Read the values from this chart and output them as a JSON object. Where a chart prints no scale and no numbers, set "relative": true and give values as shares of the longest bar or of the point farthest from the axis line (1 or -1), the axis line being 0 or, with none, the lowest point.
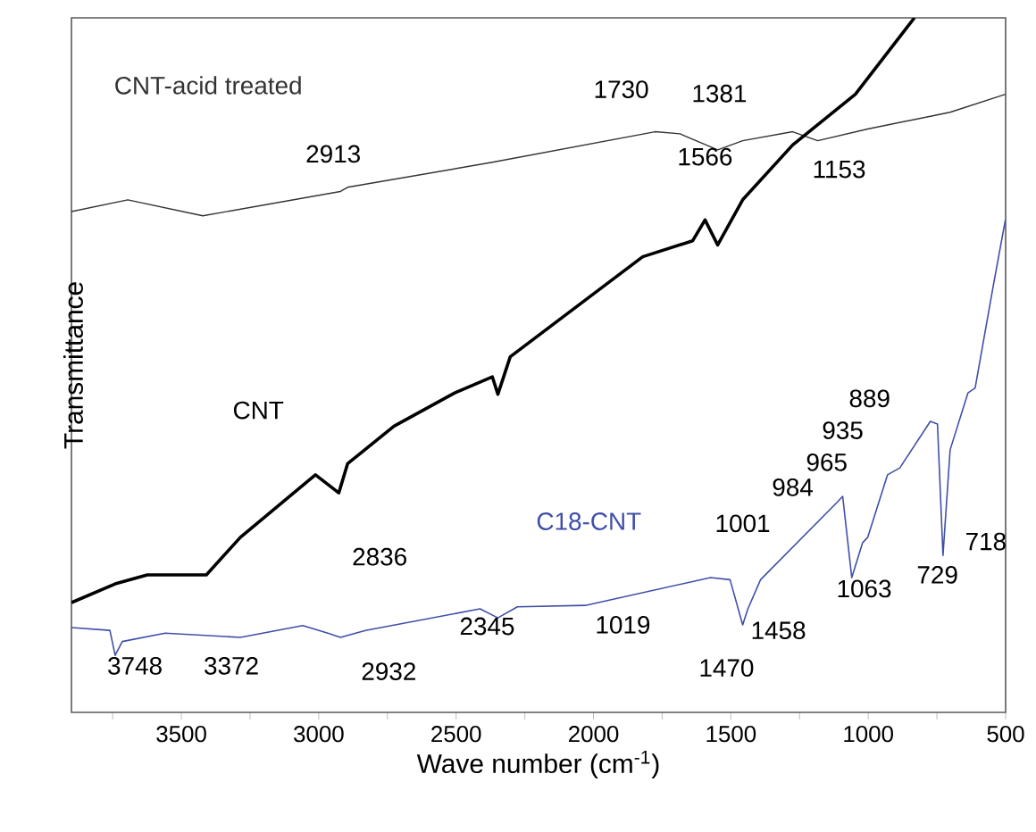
{
  "chart_data": {
    "type": "line",
    "relative": true,
    "xlabel": "Wave number (cm$^{-1}$)",
    "ylabel": "Transmittance",
    "xlim": [
      3900,
      500
    ],
    "xticks": [
      {
        "value": 3750,
        "label": null
      },
      3500,
      {
        "value": 3250,
        "label": null
      },
      3000,
      {
        "value": 2750,
        "label": null
      },
      2500,
      {
        "value": 2250,
        "label": null
      },
      2000,
      {
        "value": 1750,
        "label": null
      },
      1500,
      {
        "value": 1250,
        "label": null
      },
      1000,
      {
        "value": 750,
        "label": null
      },
      500
    ],
    "tick_labels": "x",
    "marker": "none",
    "line_style": "solid",
    "series": [
      {
        "name": "CNT-acid treated",
        "color": "#333333",
        "x": [
          3900,
          3695,
          3422,
          2921,
          2895,
          2368,
          1776,
          1685,
          1548,
          1457,
          1275,
          1184,
          1002,
          702,
          501
        ],
        "values": [
          0.721,
          0.738,
          0.715,
          0.75,
          0.756,
          0.792,
          0.836,
          0.833,
          0.81,
          0.823,
          0.836,
          0.823,
          0.84,
          0.864,
          0.89
        ]
      },
      {
        "name": "CNT",
        "color": "#000000",
        "x": [
          3900,
          3741,
          3624,
          3409,
          3285,
          3012,
          2927,
          2895,
          2726,
          2505,
          2368,
          2348,
          2303,
          1821,
          1639,
          1594,
          1548,
          1457,
          1275,
          1047,
          832
        ],
        "values": [
          0.158,
          0.185,
          0.198,
          0.198,
          0.252,
          0.342,
          0.316,
          0.358,
          0.412,
          0.46,
          0.483,
          0.458,
          0.512,
          0.656,
          0.679,
          0.709,
          0.673,
          0.738,
          0.817,
          0.89,
          1.0
        ]
      },
      {
        "name": "C18-CNT",
        "color": "#3f4fa8",
        "x": [
          3900,
          3760,
          3741,
          3715,
          3559,
          3285,
          3058,
          2967,
          2921,
          2830,
          2413,
          2348,
          2277,
          2030,
          1574,
          1503,
          1457,
          1438,
          1392,
          1112,
          1093,
          1060,
          1021,
          1002,
          930,
          885,
          774,
          748,
          728,
          702,
          637,
          611,
          546,
          501
        ],
        "values": [
          0.122,
          0.118,
          0.082,
          0.102,
          0.114,
          0.108,
          0.125,
          0.114,
          0.108,
          0.118,
          0.149,
          0.136,
          0.152,
          0.154,
          0.194,
          0.191,
          0.126,
          0.149,
          0.191,
          0.303,
          0.311,
          0.194,
          0.244,
          0.252,
          0.342,
          0.352,
          0.419,
          0.415,
          0.226,
          0.378,
          0.46,
          0.467,
          0.612,
          0.709
        ]
      }
    ],
    "annotations": [
      "2913",
      "1730",
      "1381",
      "1566",
      "1153",
      "889",
      "935",
      "965",
      "984",
      "1001",
      "2836",
      "2345",
      "1019",
      "1458",
      "1470",
      "1063",
      "729",
      "718",
      "3748",
      "3372",
      "2932"
    ]
  }
}
